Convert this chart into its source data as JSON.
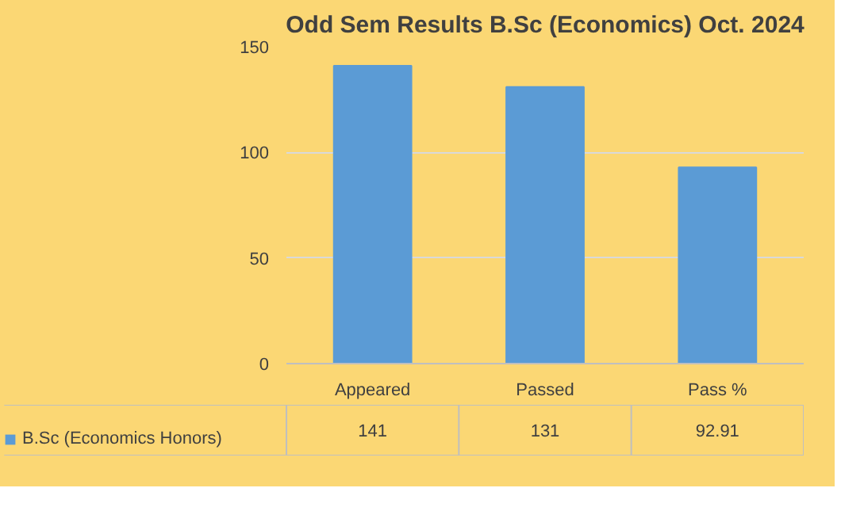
{
  "chart_data": {
    "type": "bar",
    "title": "Odd Sem Results B.Sc (Economics) Oct. 2024",
    "categories": [
      "Appeared",
      "Passed",
      "Pass %"
    ],
    "series": [
      {
        "name": "B.Sc (Economics Honors)",
        "color": "#5b9bd5",
        "values": [
          141,
          131,
          92.91
        ]
      }
    ],
    "ylim": [
      0,
      150
    ],
    "yticks": [
      0,
      50,
      100,
      150
    ],
    "grid": "y",
    "legend": "bottom",
    "data_labels": true
  }
}
